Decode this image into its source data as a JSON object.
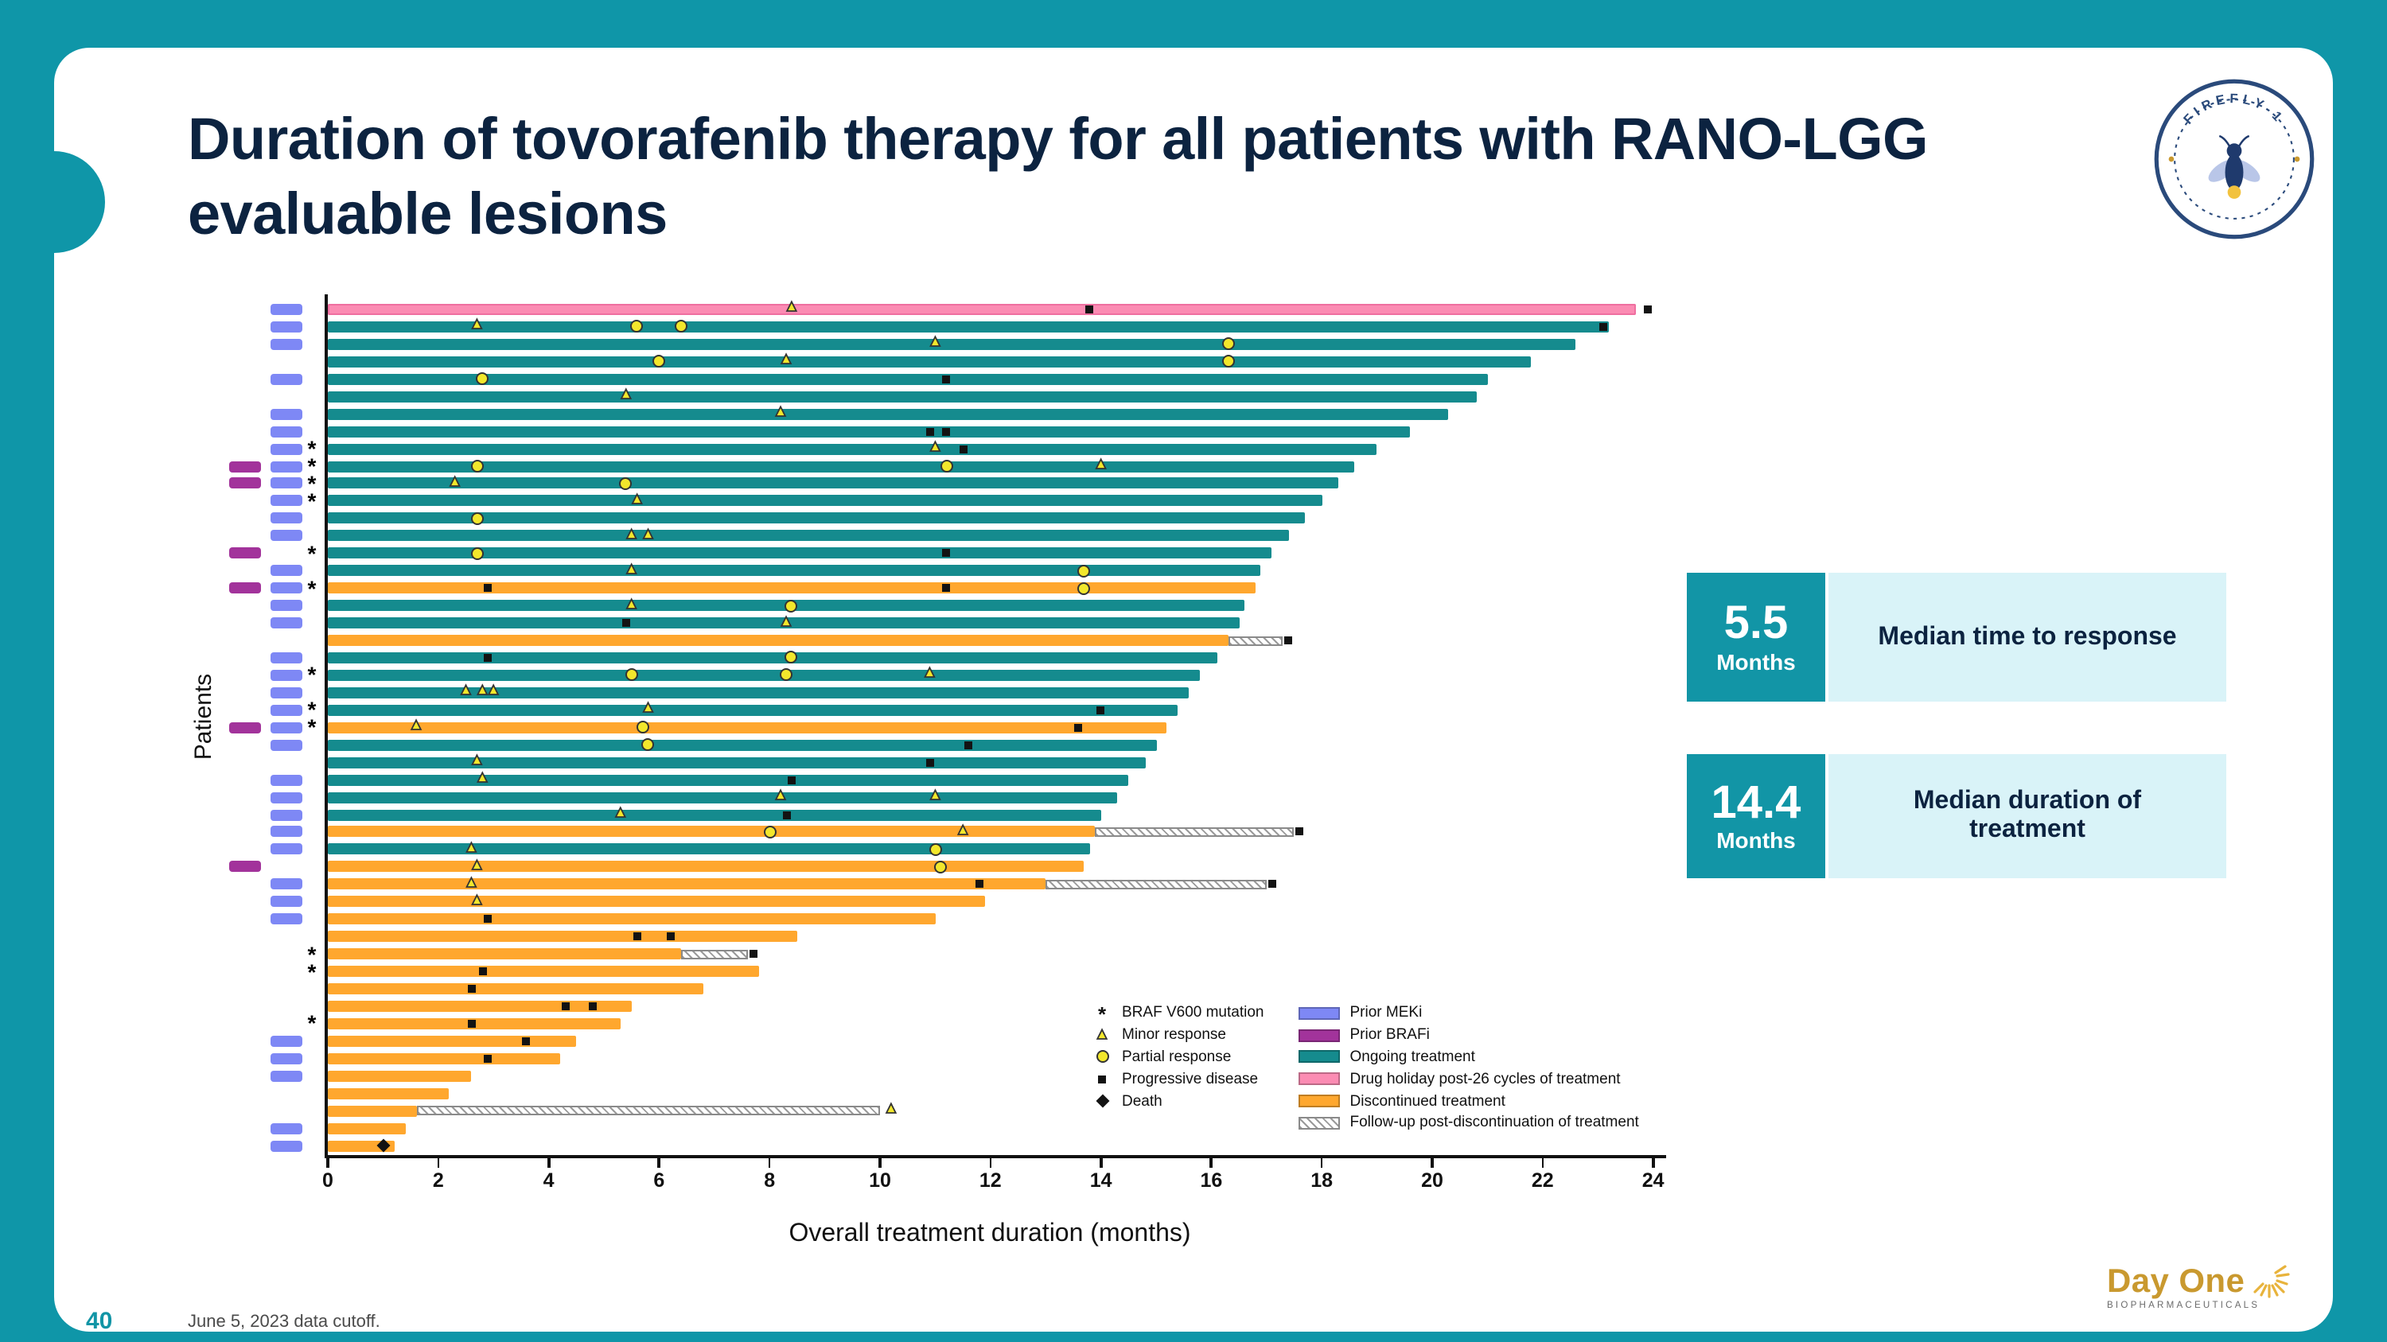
{
  "slide": {
    "title": "Duration of tovorafenib therapy for all patients with RANO-LGG evaluable lesions",
    "page_number": "40",
    "footnote": "June 5, 2023 data cutoff.",
    "firefly_logo_text": "FIREFLY-1",
    "dayone_name": "Day One",
    "dayone_sub": "BIOPHARMACEUTICALS"
  },
  "stats": [
    {
      "value": "5.5",
      "unit": "Months",
      "label": "Median time to response"
    },
    {
      "value": "14.4",
      "unit": "Months",
      "label": "Median duration of treatment"
    }
  ],
  "colors": {
    "slide_teal": "#0F96A8",
    "navy": "#0C2340",
    "teal": "#158B8E",
    "orange": "#FFA72E",
    "pink": "#FB8CB3",
    "blue": "#7E88F5",
    "purple": "#A2339B",
    "stat_teal": "#1295A6",
    "stat_light": "#D9F3F8",
    "gold": "#C9992F"
  },
  "chart_data": {
    "type": "bar",
    "subtype": "swimmer",
    "xlabel": "Overall treatment duration (months)",
    "ylabel": "Patients",
    "xlim": [
      0,
      24
    ],
    "x_ticks": [
      0,
      2,
      4,
      6,
      8,
      10,
      12,
      14,
      16,
      18,
      20,
      22,
      24
    ],
    "legend_symbols": [
      {
        "symbol": "star",
        "label": "BRAF V600 mutation"
      },
      {
        "symbol": "triangle",
        "label": "Minor response"
      },
      {
        "symbol": "circle",
        "label": "Partial response"
      },
      {
        "symbol": "square",
        "label": "Progressive disease"
      },
      {
        "symbol": "diamond",
        "label": "Death"
      }
    ],
    "legend_swatches": [
      {
        "key": "meki",
        "label": "Prior MEKi",
        "color": "#7E88F5"
      },
      {
        "key": "brafi",
        "label": "Prior BRAFi",
        "color": "#A2339B"
      },
      {
        "key": "ongoing",
        "label": "Ongoing treatment",
        "color": "#158B8E"
      },
      {
        "key": "holiday",
        "label": "Drug holiday post-26 cycles of treatment",
        "color": "#FB8CB3"
      },
      {
        "key": "discontinued",
        "label": "Discontinued treatment",
        "color": "#FFA72E"
      },
      {
        "key": "followup",
        "label": "Follow-up post-discontinuation of treatment",
        "color": "hatch"
      }
    ],
    "marker_meaning": {
      "triangle": "Minor response",
      "circle": "Partial response",
      "square": "Progressive disease",
      "diamond": "Death"
    },
    "patients": [
      {
        "end": 23.7,
        "bar": "holiday",
        "meki": 1,
        "marks": [
          [
            "triangle",
            8.4
          ],
          [
            "square",
            13.8
          ],
          [
            "square",
            23.9
          ]
        ]
      },
      {
        "end": 23.2,
        "bar": "ongoing",
        "meki": 1,
        "marks": [
          [
            "triangle",
            2.7
          ],
          [
            "circle",
            5.6
          ],
          [
            "circle",
            6.4
          ],
          [
            "square",
            23.1
          ]
        ]
      },
      {
        "end": 22.6,
        "bar": "ongoing",
        "meki": 1,
        "marks": [
          [
            "triangle",
            11.0
          ],
          [
            "circle",
            16.3
          ]
        ]
      },
      {
        "end": 21.8,
        "bar": "ongoing",
        "marks": [
          [
            "circle",
            6.0
          ],
          [
            "triangle",
            8.3
          ],
          [
            "circle",
            16.3
          ]
        ]
      },
      {
        "end": 21.0,
        "bar": "ongoing",
        "meki": 1,
        "marks": [
          [
            "circle",
            2.8
          ],
          [
            "square",
            11.2
          ]
        ]
      },
      {
        "end": 20.8,
        "bar": "ongoing",
        "marks": [
          [
            "triangle",
            5.4
          ]
        ]
      },
      {
        "end": 20.3,
        "bar": "ongoing",
        "meki": 1,
        "marks": [
          [
            "triangle",
            8.2
          ]
        ]
      },
      {
        "end": 19.6,
        "bar": "ongoing",
        "meki": 1,
        "marks": [
          [
            "square",
            10.9
          ],
          [
            "square",
            11.2
          ]
        ]
      },
      {
        "end": 19.0,
        "bar": "ongoing",
        "meki": 1,
        "star": 1,
        "marks": [
          [
            "triangle",
            11.0
          ],
          [
            "square",
            11.5
          ]
        ]
      },
      {
        "end": 18.6,
        "bar": "ongoing",
        "meki": 1,
        "brafi": 1,
        "star": 1,
        "marks": [
          [
            "circle",
            2.7
          ],
          [
            "circle",
            11.2
          ],
          [
            "triangle",
            14.0
          ]
        ]
      },
      {
        "end": 18.3,
        "bar": "ongoing",
        "meki": 1,
        "brafi": 1,
        "star": 1,
        "marks": [
          [
            "triangle",
            2.3
          ],
          [
            "circle",
            5.4
          ]
        ]
      },
      {
        "end": 18.0,
        "bar": "ongoing",
        "meki": 1,
        "star": 1,
        "marks": [
          [
            "triangle",
            5.6
          ]
        ]
      },
      {
        "end": 17.7,
        "bar": "ongoing",
        "meki": 1,
        "marks": [
          [
            "circle",
            2.7
          ]
        ]
      },
      {
        "end": 17.4,
        "bar": "ongoing",
        "meki": 1,
        "marks": [
          [
            "triangle",
            5.5
          ],
          [
            "triangle",
            5.8
          ]
        ]
      },
      {
        "end": 17.1,
        "bar": "ongoing",
        "brafi": 1,
        "star": 1,
        "marks": [
          [
            "circle",
            2.7
          ],
          [
            "square",
            11.2
          ]
        ]
      },
      {
        "end": 16.9,
        "bar": "ongoing",
        "meki": 1,
        "marks": [
          [
            "triangle",
            5.5
          ],
          [
            "circle",
            13.7
          ]
        ]
      },
      {
        "end": 16.8,
        "bar": "discontinued",
        "meki": 1,
        "brafi": 1,
        "star": 1,
        "marks": [
          [
            "square",
            2.9
          ],
          [
            "square",
            11.2
          ],
          [
            "circle",
            13.7
          ]
        ]
      },
      {
        "end": 16.6,
        "bar": "ongoing",
        "meki": 1,
        "marks": [
          [
            "triangle",
            5.5
          ],
          [
            "circle",
            8.4
          ]
        ]
      },
      {
        "end": 16.5,
        "bar": "ongoing",
        "meki": 1,
        "marks": [
          [
            "square",
            5.4
          ],
          [
            "triangle",
            8.3
          ]
        ]
      },
      {
        "end": 16.3,
        "bar": "discontinued",
        "fu": 17.3,
        "marks": [
          [
            "square",
            17.4
          ]
        ]
      },
      {
        "end": 16.1,
        "bar": "ongoing",
        "meki": 1,
        "marks": [
          [
            "square",
            2.9
          ],
          [
            "circle",
            8.4
          ]
        ]
      },
      {
        "end": 15.8,
        "bar": "ongoing",
        "meki": 1,
        "star": 1,
        "marks": [
          [
            "circle",
            5.5
          ],
          [
            "circle",
            8.3
          ],
          [
            "triangle",
            10.9
          ]
        ]
      },
      {
        "end": 15.6,
        "bar": "ongoing",
        "meki": 1,
        "marks": [
          [
            "triangle",
            2.5
          ],
          [
            "triangle",
            2.8
          ],
          [
            "triangle",
            3.0
          ]
        ]
      },
      {
        "end": 15.4,
        "bar": "ongoing",
        "meki": 1,
        "star": 1,
        "marks": [
          [
            "triangle",
            5.8
          ],
          [
            "square",
            14.0
          ]
        ]
      },
      {
        "end": 15.2,
        "bar": "discontinued",
        "meki": 1,
        "brafi": 1,
        "star": 1,
        "marks": [
          [
            "triangle",
            1.6
          ],
          [
            "circle",
            5.7
          ],
          [
            "square",
            13.6
          ]
        ]
      },
      {
        "end": 15.0,
        "bar": "ongoing",
        "meki": 1,
        "marks": [
          [
            "circle",
            5.8
          ],
          [
            "square",
            11.6
          ]
        ]
      },
      {
        "end": 14.8,
        "bar": "ongoing",
        "marks": [
          [
            "triangle",
            2.7
          ],
          [
            "square",
            10.9
          ]
        ]
      },
      {
        "end": 14.5,
        "bar": "ongoing",
        "meki": 1,
        "marks": [
          [
            "triangle",
            2.8
          ],
          [
            "square",
            8.4
          ]
        ]
      },
      {
        "end": 14.3,
        "bar": "ongoing",
        "meki": 1,
        "marks": [
          [
            "triangle",
            8.2
          ],
          [
            "triangle",
            11.0
          ]
        ]
      },
      {
        "end": 14.0,
        "bar": "ongoing",
        "meki": 1,
        "marks": [
          [
            "triangle",
            5.3
          ],
          [
            "square",
            8.3
          ]
        ]
      },
      {
        "end": 13.9,
        "bar": "discontinued",
        "fu": 17.5,
        "meki": 1,
        "marks": [
          [
            "circle",
            8.0
          ],
          [
            "triangle",
            11.5
          ],
          [
            "square",
            17.6
          ]
        ]
      },
      {
        "end": 13.8,
        "bar": "ongoing",
        "meki": 1,
        "marks": [
          [
            "triangle",
            2.6
          ],
          [
            "circle",
            11.0
          ]
        ]
      },
      {
        "end": 13.7,
        "bar": "discontinued",
        "brafi": 1,
        "marks": [
          [
            "triangle",
            2.7
          ],
          [
            "circle",
            11.1
          ]
        ]
      },
      {
        "end": 13.0,
        "bar": "discontinued",
        "fu": 17.0,
        "meki": 1,
        "marks": [
          [
            "triangle",
            2.6
          ],
          [
            "square",
            11.8
          ],
          [
            "square",
            17.1
          ]
        ]
      },
      {
        "end": 11.9,
        "bar": "discontinued",
        "meki": 1,
        "marks": [
          [
            "triangle",
            2.7
          ]
        ]
      },
      {
        "end": 11.0,
        "bar": "discontinued",
        "meki": 1,
        "marks": [
          [
            "square",
            2.9
          ]
        ]
      },
      {
        "end": 8.5,
        "bar": "discontinued",
        "marks": [
          [
            "square",
            5.6
          ],
          [
            "square",
            6.2
          ]
        ]
      },
      {
        "end": 6.4,
        "bar": "discontinued",
        "fu": 7.6,
        "star": 1,
        "marks": [
          [
            "square",
            7.7
          ]
        ]
      },
      {
        "end": 7.8,
        "bar": "discontinued",
        "star": 1,
        "marks": [
          [
            "square",
            2.8
          ]
        ]
      },
      {
        "end": 6.8,
        "bar": "discontinued",
        "marks": [
          [
            "square",
            2.6
          ]
        ]
      },
      {
        "end": 5.5,
        "bar": "discontinued",
        "marks": [
          [
            "square",
            4.3
          ],
          [
            "square",
            4.8
          ]
        ]
      },
      {
        "end": 5.3,
        "bar": "discontinued",
        "star": 1,
        "marks": [
          [
            "square",
            2.6
          ]
        ]
      },
      {
        "end": 4.5,
        "bar": "discontinued",
        "meki": 1,
        "marks": [
          [
            "square",
            3.6
          ]
        ]
      },
      {
        "end": 4.2,
        "bar": "discontinued",
        "meki": 1,
        "marks": [
          [
            "square",
            2.9
          ]
        ]
      },
      {
        "end": 2.6,
        "bar": "discontinued",
        "meki": 1
      },
      {
        "end": 2.2,
        "bar": "discontinued"
      },
      {
        "end": 1.6,
        "bar": "discontinued",
        "fu": 10.0,
        "marks": [
          [
            "triangle",
            10.2
          ]
        ]
      },
      {
        "end": 1.4,
        "bar": "discontinued",
        "meki": 1
      },
      {
        "end": 1.2,
        "bar": "discontinued",
        "meki": 1,
        "marks": [
          [
            "diamond",
            1.0
          ]
        ]
      }
    ]
  }
}
